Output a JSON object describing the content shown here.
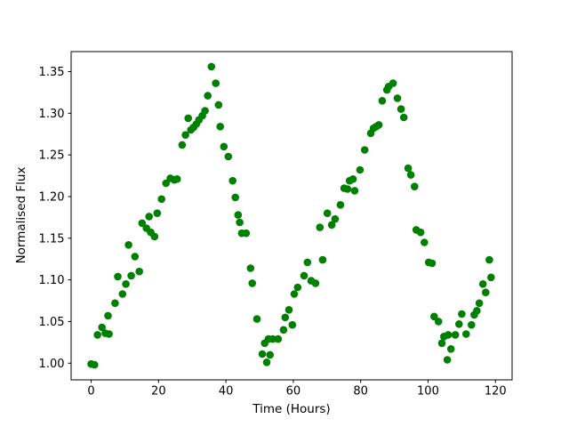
{
  "chart_data": {
    "type": "scatter",
    "title": "",
    "xlabel": "Time (Hours)",
    "ylabel": "Normalised Flux",
    "xlim": [
      -5.95,
      124.95
    ],
    "ylim": [
      0.98,
      1.374
    ],
    "xticks": [
      0,
      20,
      40,
      60,
      80,
      100,
      120
    ],
    "xtick_labels": [
      "0",
      "20",
      "40",
      "60",
      "80",
      "100",
      "120"
    ],
    "yticks": [
      1.0,
      1.05,
      1.1,
      1.15,
      1.2,
      1.25,
      1.3,
      1.35
    ],
    "ytick_labels": [
      "1.00",
      "1.05",
      "1.10",
      "1.15",
      "1.20",
      "1.25",
      "1.30",
      "1.35"
    ],
    "grid": false,
    "legend": null,
    "marker_color": "#008000",
    "background_color": "#ffffff",
    "spine_color": "#000000",
    "points": [
      [
        0.0,
        0.999
      ],
      [
        1.0,
        0.998
      ],
      [
        1.9,
        1.034
      ],
      [
        3.2,
        1.043
      ],
      [
        4.2,
        1.036
      ],
      [
        5.0,
        1.057
      ],
      [
        5.3,
        1.035
      ],
      [
        7.1,
        1.072
      ],
      [
        7.9,
        1.104
      ],
      [
        9.3,
        1.083
      ],
      [
        10.3,
        1.095
      ],
      [
        11.1,
        1.142
      ],
      [
        11.9,
        1.105
      ],
      [
        13.0,
        1.128
      ],
      [
        14.3,
        1.11
      ],
      [
        15.1,
        1.168
      ],
      [
        16.4,
        1.162
      ],
      [
        17.2,
        1.176
      ],
      [
        17.7,
        1.157
      ],
      [
        18.8,
        1.152
      ],
      [
        19.6,
        1.18
      ],
      [
        20.9,
        1.197
      ],
      [
        22.2,
        1.216
      ],
      [
        23.5,
        1.222
      ],
      [
        24.7,
        1.22
      ],
      [
        25.5,
        1.221
      ],
      [
        27.0,
        1.262
      ],
      [
        28.0,
        1.274
      ],
      [
        28.8,
        1.294
      ],
      [
        29.6,
        1.28
      ],
      [
        30.4,
        1.283
      ],
      [
        31.2,
        1.287
      ],
      [
        32.0,
        1.292
      ],
      [
        33.0,
        1.297
      ],
      [
        33.8,
        1.303
      ],
      [
        34.6,
        1.321
      ],
      [
        35.7,
        1.356
      ],
      [
        37.0,
        1.336
      ],
      [
        37.8,
        1.31
      ],
      [
        38.3,
        1.284
      ],
      [
        39.4,
        1.26
      ],
      [
        40.7,
        1.248
      ],
      [
        42.0,
        1.219
      ],
      [
        42.8,
        1.199
      ],
      [
        43.6,
        1.178
      ],
      [
        44.1,
        1.169
      ],
      [
        44.7,
        1.156
      ],
      [
        46.0,
        1.156
      ],
      [
        47.3,
        1.114
      ],
      [
        47.8,
        1.096
      ],
      [
        49.2,
        1.053
      ],
      [
        50.8,
        1.011
      ],
      [
        51.5,
        1.024
      ],
      [
        52.1,
        1.001
      ],
      [
        52.6,
        1.029
      ],
      [
        53.1,
        1.01
      ],
      [
        53.9,
        1.029
      ],
      [
        55.5,
        1.029
      ],
      [
        57.1,
        1.04
      ],
      [
        57.6,
        1.055
      ],
      [
        58.7,
        1.064
      ],
      [
        59.7,
        1.046
      ],
      [
        60.3,
        1.083
      ],
      [
        61.3,
        1.091
      ],
      [
        63.2,
        1.105
      ],
      [
        64.2,
        1.121
      ],
      [
        65.3,
        1.099
      ],
      [
        66.6,
        1.096
      ],
      [
        67.9,
        1.163
      ],
      [
        68.7,
        1.124
      ],
      [
        70.1,
        1.18
      ],
      [
        71.4,
        1.166
      ],
      [
        72.4,
        1.173
      ],
      [
        74.0,
        1.19
      ],
      [
        75.1,
        1.21
      ],
      [
        76.1,
        1.209
      ],
      [
        76.7,
        1.219
      ],
      [
        77.7,
        1.221
      ],
      [
        78.2,
        1.207
      ],
      [
        79.8,
        1.232
      ],
      [
        81.2,
        1.256
      ],
      [
        83.0,
        1.276
      ],
      [
        83.8,
        1.282
      ],
      [
        84.6,
        1.284
      ],
      [
        85.4,
        1.286
      ],
      [
        86.4,
        1.315
      ],
      [
        87.8,
        1.328
      ],
      [
        88.3,
        1.332
      ],
      [
        89.6,
        1.336
      ],
      [
        90.9,
        1.318
      ],
      [
        92.0,
        1.305
      ],
      [
        92.8,
        1.295
      ],
      [
        94.1,
        1.234
      ],
      [
        94.9,
        1.226
      ],
      [
        96.0,
        1.212
      ],
      [
        96.5,
        1.16
      ],
      [
        97.8,
        1.157
      ],
      [
        98.9,
        1.145
      ],
      [
        100.2,
        1.121
      ],
      [
        101.2,
        1.12
      ],
      [
        101.8,
        1.056
      ],
      [
        103.1,
        1.05
      ],
      [
        104.1,
        1.024
      ],
      [
        104.7,
        1.032
      ],
      [
        105.7,
        1.004
      ],
      [
        106.0,
        1.034
      ],
      [
        106.8,
        1.017
      ],
      [
        108.1,
        1.034
      ],
      [
        109.2,
        1.047
      ],
      [
        110.0,
        1.059
      ],
      [
        111.3,
        1.035
      ],
      [
        112.9,
        1.046
      ],
      [
        113.7,
        1.058
      ],
      [
        114.5,
        1.063
      ],
      [
        115.2,
        1.072
      ],
      [
        116.3,
        1.095
      ],
      [
        117.1,
        1.085
      ],
      [
        118.2,
        1.124
      ],
      [
        118.7,
        1.103
      ]
    ]
  }
}
